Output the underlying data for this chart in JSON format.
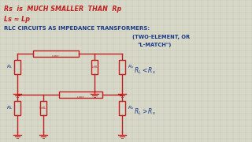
{
  "background_color": "#d8d8c8",
  "grid_color": "#c0c0b0",
  "text_color_blue": "#1a3a8a",
  "text_color_red": "#c02020",
  "line1": "Rs  is  MUCH SMALLER  THAN  Rp",
  "line2": "Ls ≈ Lp",
  "line3": "RLC CIRCUITS AS IMPEDANCE TRANSFORMERS:",
  "line4": "(TWO-ELEMENT, OR",
  "line5": "  \"L-MATCH\")",
  "cond_top": "R_L < R_s",
  "cond_bot": "R_L > R_s"
}
